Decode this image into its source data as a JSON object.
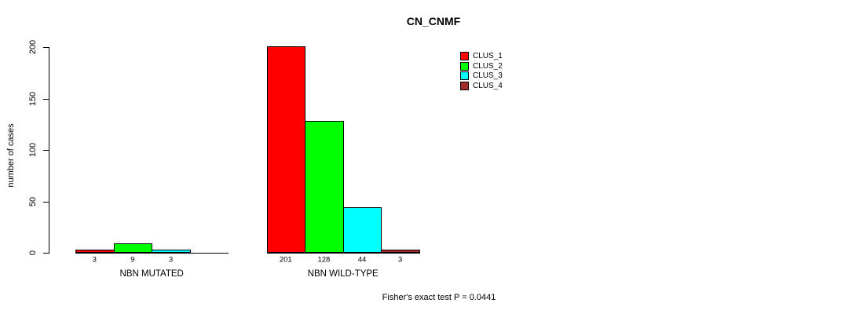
{
  "chart_data": {
    "type": "bar",
    "title": "CN_CNMF",
    "ylabel": "number of cases",
    "xlabel": "",
    "ylim": [
      0,
      200
    ],
    "yticks": [
      0,
      50,
      100,
      150,
      200
    ],
    "grid": false,
    "legend_position": "top-right",
    "background_color": "#FFFFFF",
    "bar_border_color": "#000000",
    "series": [
      {
        "name": "CLUS_1",
        "color": "#FF0000"
      },
      {
        "name": "CLUS_2",
        "color": "#00FF00"
      },
      {
        "name": "CLUS_3",
        "color": "#00FFFF"
      },
      {
        "name": "CLUS_4",
        "color": "#A52A2A"
      }
    ],
    "categories": [
      "NBN MUTATED",
      "NBN WILD-TYPE"
    ],
    "groups": [
      {
        "label": "NBN MUTATED",
        "values": [
          3,
          9,
          3,
          0
        ],
        "value_labels": [
          "3",
          "9",
          "3",
          ""
        ]
      },
      {
        "label": "NBN WILD-TYPE",
        "values": [
          201,
          128,
          44,
          3
        ],
        "value_labels": [
          "201",
          "128",
          "44",
          "3"
        ]
      }
    ],
    "annotation": "Fisher's exact test P = 0.0441"
  }
}
